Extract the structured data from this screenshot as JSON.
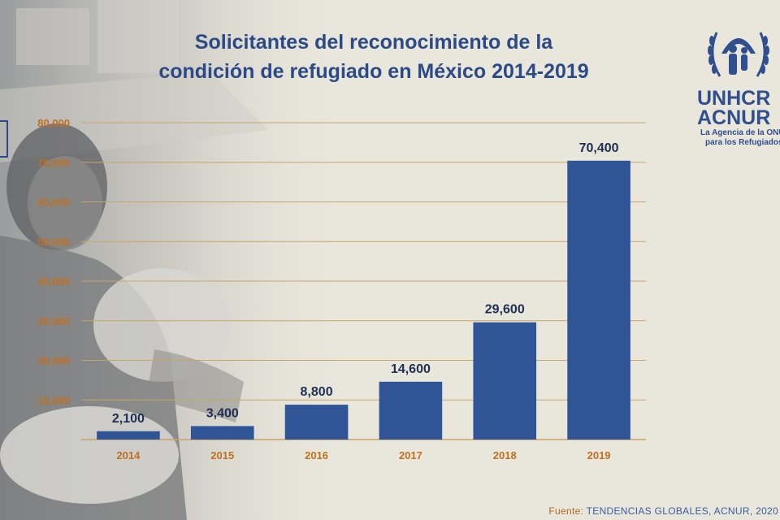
{
  "title": {
    "line1": "Solicitantes del reconocimiento de la",
    "line2": "condición de refugiado en México 2014-2019"
  },
  "logo": {
    "word1": "UNHCR",
    "word2": "ACNUR",
    "sub1": "La Agencia de la ONU",
    "sub2": "para los Refugiados"
  },
  "source": {
    "label": "Fuente:",
    "text": "TENDENCIAS GLOBALES, ACNUR, 2020"
  },
  "colors": {
    "bar": "#2f5597",
    "tick_label": "#c0701f",
    "grid": "#c9a46a",
    "value_label": "#1f2f52",
    "title": "#2b4a86"
  },
  "chart_data": {
    "type": "bar",
    "categories": [
      "2014",
      "2015",
      "2016",
      "2017",
      "2018",
      "2019"
    ],
    "values": [
      2100,
      3400,
      8800,
      14600,
      29600,
      70400
    ],
    "data_labels": [
      "2,100",
      "3,400",
      "8,800",
      "14,600",
      "29,600",
      "70,400"
    ],
    "title": "Solicitantes del reconocimiento de la condición de refugiado en México 2014-2019",
    "xlabel": "",
    "ylabel": "",
    "ylim": [
      0,
      80000
    ],
    "yticks": [
      0,
      10000,
      20000,
      30000,
      40000,
      50000,
      60000,
      70000,
      80000
    ],
    "ytick_labels": [
      "",
      "10,000",
      "20,000",
      "30,000",
      "40,000",
      "50,000",
      "60,000",
      "70,000",
      "80,000"
    ],
    "grid": true,
    "legend": "none"
  }
}
